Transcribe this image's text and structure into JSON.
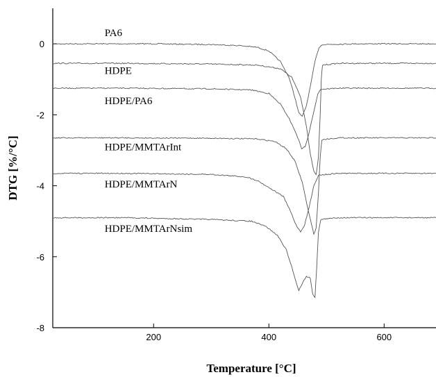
{
  "chart_data": {
    "type": "line",
    "title": "",
    "xlabel": "Temperature [°C]",
    "ylabel": "DTG [%/°C]",
    "xlim": [
      25,
      690
    ],
    "ylim": [
      -8,
      1
    ],
    "x_ticks": [
      200,
      400,
      600
    ],
    "y_ticks": [
      0,
      -2,
      -4,
      -6,
      -8
    ],
    "grid": false,
    "legend": "inline labels",
    "series": [
      {
        "name": "PA6",
        "points": [
          [
            25,
            0
          ],
          [
            100,
            0
          ],
          [
            200,
            0
          ],
          [
            300,
            -0.02
          ],
          [
            350,
            -0.05
          ],
          [
            380,
            -0.1
          ],
          [
            400,
            -0.2
          ],
          [
            420,
            -0.5
          ],
          [
            435,
            -0.95
          ],
          [
            445,
            -1.5
          ],
          [
            452,
            -1.95
          ],
          [
            458,
            -2.05
          ],
          [
            465,
            -1.75
          ],
          [
            472,
            -1.2
          ],
          [
            480,
            -0.5
          ],
          [
            487,
            -0.1
          ],
          [
            493,
            -0.02
          ],
          [
            550,
            0
          ],
          [
            690,
            0
          ]
        ]
      },
      {
        "name": "HDPE",
        "points": [
          [
            25,
            -0.55
          ],
          [
            150,
            -0.55
          ],
          [
            300,
            -0.57
          ],
          [
            380,
            -0.6
          ],
          [
            420,
            -0.7
          ],
          [
            440,
            -0.95
          ],
          [
            455,
            -1.5
          ],
          [
            465,
            -2.3
          ],
          [
            472,
            -3.1
          ],
          [
            478,
            -3.6
          ],
          [
            482,
            -3.7
          ],
          [
            486,
            -3.2
          ],
          [
            489,
            -2.0
          ],
          [
            491,
            -1.0
          ],
          [
            493,
            -0.6
          ],
          [
            520,
            -0.55
          ],
          [
            690,
            -0.55
          ]
        ]
      },
      {
        "name": "HDPE/PA6",
        "points": [
          [
            25,
            -1.25
          ],
          [
            150,
            -1.25
          ],
          [
            300,
            -1.27
          ],
          [
            370,
            -1.3
          ],
          [
            400,
            -1.4
          ],
          [
            420,
            -1.7
          ],
          [
            435,
            -2.1
          ],
          [
            448,
            -2.55
          ],
          [
            457,
            -2.95
          ],
          [
            463,
            -2.9
          ],
          [
            470,
            -2.5
          ],
          [
            478,
            -1.9
          ],
          [
            485,
            -1.4
          ],
          [
            490,
            -1.28
          ],
          [
            520,
            -1.25
          ],
          [
            690,
            -1.25
          ]
        ]
      },
      {
        "name": "HDPE/MMTArInt",
        "points": [
          [
            25,
            -2.65
          ],
          [
            150,
            -2.65
          ],
          [
            300,
            -2.66
          ],
          [
            380,
            -2.68
          ],
          [
            410,
            -2.75
          ],
          [
            430,
            -2.95
          ],
          [
            445,
            -3.3
          ],
          [
            458,
            -3.9
          ],
          [
            467,
            -4.6
          ],
          [
            474,
            -5.1
          ],
          [
            478,
            -5.35
          ],
          [
            482,
            -5.2
          ],
          [
            486,
            -4.2
          ],
          [
            489,
            -3.2
          ],
          [
            492,
            -2.7
          ],
          [
            520,
            -2.65
          ],
          [
            690,
            -2.65
          ]
        ]
      },
      {
        "name": "HDPE/MMTArN",
        "points": [
          [
            25,
            -3.65
          ],
          [
            150,
            -3.65
          ],
          [
            300,
            -3.68
          ],
          [
            360,
            -3.75
          ],
          [
            380,
            -3.85
          ],
          [
            395,
            -4.0
          ],
          [
            410,
            -4.15
          ],
          [
            425,
            -4.3
          ],
          [
            437,
            -4.7
          ],
          [
            447,
            -5.1
          ],
          [
            455,
            -5.3
          ],
          [
            462,
            -5.1
          ],
          [
            470,
            -4.6
          ],
          [
            478,
            -4.0
          ],
          [
            486,
            -3.7
          ],
          [
            520,
            -3.65
          ],
          [
            690,
            -3.65
          ]
        ]
      },
      {
        "name": "HDPE/MMTArNsim",
        "points": [
          [
            25,
            -4.9
          ],
          [
            150,
            -4.9
          ],
          [
            300,
            -4.95
          ],
          [
            370,
            -5.0
          ],
          [
            395,
            -5.15
          ],
          [
            415,
            -5.4
          ],
          [
            430,
            -5.8
          ],
          [
            440,
            -6.3
          ],
          [
            447,
            -6.7
          ],
          [
            452,
            -6.95
          ],
          [
            458,
            -6.75
          ],
          [
            465,
            -6.55
          ],
          [
            472,
            -6.6
          ],
          [
            476,
            -7.05
          ],
          [
            480,
            -7.15
          ],
          [
            483,
            -6.3
          ],
          [
            486,
            -5.3
          ],
          [
            490,
            -4.95
          ],
          [
            520,
            -4.9
          ],
          [
            690,
            -4.9
          ]
        ]
      }
    ],
    "series_labels": [
      {
        "text": "PA6",
        "x": 115,
        "y": 0.22
      },
      {
        "text": "HDPE",
        "x": 115,
        "y": -0.85
      },
      {
        "text": "HDPE/PA6",
        "x": 115,
        "y": -1.7
      },
      {
        "text": "HDPE/MMTArInt",
        "x": 115,
        "y": -3.0
      },
      {
        "text": "HDPE/MMTArN",
        "x": 115,
        "y": -4.05
      },
      {
        "text": "HDPE/MMTArNsim",
        "x": 115,
        "y": -5.3
      }
    ]
  }
}
